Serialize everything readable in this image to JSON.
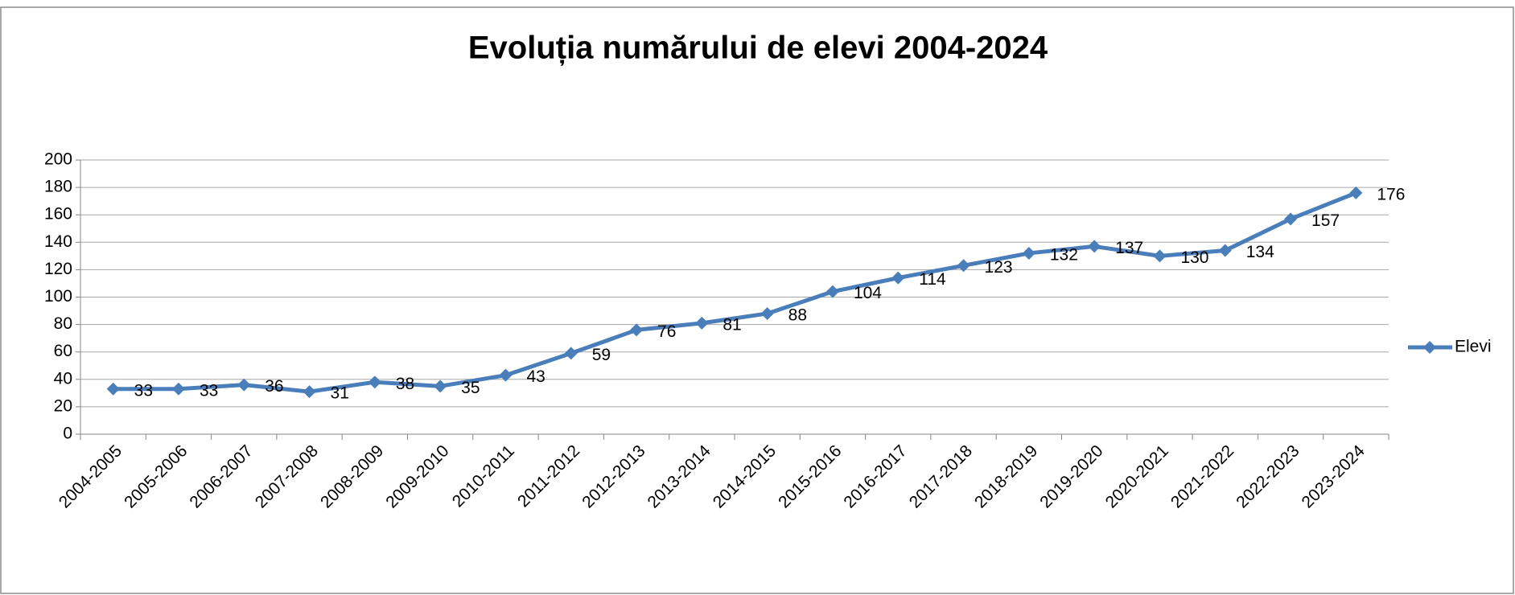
{
  "chart_data": {
    "type": "line",
    "title": "Evoluția numărului de elevi 2004-2024",
    "categories": [
      "2004-2005",
      "2005-2006",
      "2006-2007",
      "2007-2008",
      "2008-2009",
      "2009-2010",
      "2010-2011",
      "2011-2012",
      "2012-2013",
      "2013-2014",
      "2014-2015",
      "2015-2016",
      "2016-2017",
      "2017-2018",
      "2018-2019",
      "2019-2020",
      "2020-2021",
      "2021-2022",
      "2022-2023",
      "2023-2024"
    ],
    "series": [
      {
        "name": "Elevi",
        "color": "#4a7ebb",
        "values": [
          33,
          33,
          36,
          31,
          38,
          35,
          43,
          59,
          76,
          81,
          88,
          104,
          114,
          123,
          132,
          137,
          130,
          134,
          157,
          176
        ]
      }
    ],
    "ylim": [
      0,
      200
    ],
    "yticks": [
      0,
      20,
      40,
      60,
      80,
      100,
      120,
      140,
      160,
      180,
      200
    ],
    "grid": true,
    "legend": "right"
  }
}
